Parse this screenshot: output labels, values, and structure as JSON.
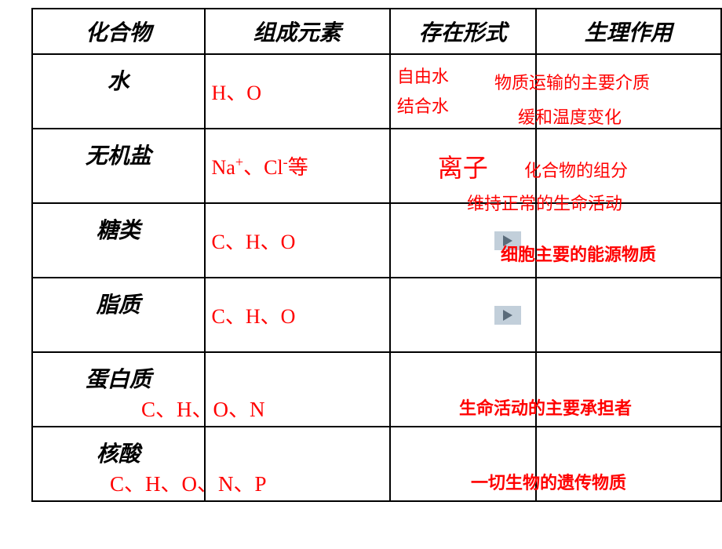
{
  "headers": {
    "compound": "化合物",
    "elements": "组成元素",
    "form": "存在形式",
    "function": "生理作用"
  },
  "rows": {
    "water": {
      "name": "水",
      "elements": "H、O",
      "form_line1": "自由水",
      "form_line2": "结合水",
      "function_line1": "物质运输的主要介质",
      "function_line2": "缓和温度变化"
    },
    "salt": {
      "name": "无机盐",
      "elements_html": "Na<sup>+</sup>、Cl<sup>-</sup>等",
      "form": "离子",
      "function_line1": "化合物的组分",
      "function_line2": "维持正常的生命活动"
    },
    "sugar": {
      "name": "糖类",
      "elements": "C、H、O",
      "function": "细胞主要的能源物质"
    },
    "lipid": {
      "name": "脂质",
      "elements": "C、H、O"
    },
    "protein": {
      "name": "蛋白质",
      "elements": "C、H、O、N",
      "function": "生命活动的主要承担者"
    },
    "nucleic": {
      "name": "核酸",
      "elements": "C、H、O、N、P",
      "function": "一切生物的遗传物质"
    }
  },
  "colors": {
    "text_black": "#000000",
    "text_red": "#ff0000",
    "border": "#000000",
    "play_bg": "#c2cfda",
    "play_arrow": "#5a6b7a",
    "background": "#ffffff"
  }
}
